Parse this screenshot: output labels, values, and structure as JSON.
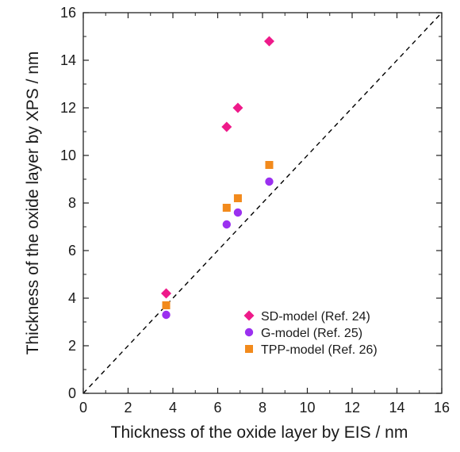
{
  "chart_data": {
    "type": "scatter",
    "title": "",
    "xlabel": "Thickness of the oxide layer by EIS / nm",
    "ylabel": "Thickness of the oxide layer by XPS / nm",
    "xlim": [
      0,
      16
    ],
    "ylim": [
      0,
      16
    ],
    "xticks": [
      0,
      2,
      4,
      6,
      8,
      10,
      12,
      14,
      16
    ],
    "yticks": [
      0,
      2,
      4,
      6,
      8,
      10,
      12,
      14,
      16
    ],
    "grid": false,
    "legend_position": "bottom-right",
    "reference_line": {
      "style": "dashed",
      "color": "#000000",
      "from": [
        0,
        0
      ],
      "to": [
        16,
        16
      ]
    },
    "series": [
      {
        "name": "SD-model (Ref. 24)",
        "marker": "diamond",
        "color": "#ee1a8a",
        "x": [
          3.7,
          6.4,
          6.9,
          8.3
        ],
        "y": [
          4.2,
          11.2,
          12.0,
          14.8
        ]
      },
      {
        "name": "G-model (Ref. 25)",
        "marker": "circle",
        "color": "#9b30f0",
        "x": [
          3.7,
          6.4,
          6.9,
          8.3
        ],
        "y": [
          3.3,
          7.1,
          7.6,
          8.9
        ]
      },
      {
        "name": "TPP-model (Ref. 26)",
        "marker": "square",
        "color": "#f28a1c",
        "x": [
          3.7,
          6.4,
          6.9,
          8.3
        ],
        "y": [
          3.7,
          7.8,
          8.2,
          9.6
        ]
      }
    ]
  }
}
